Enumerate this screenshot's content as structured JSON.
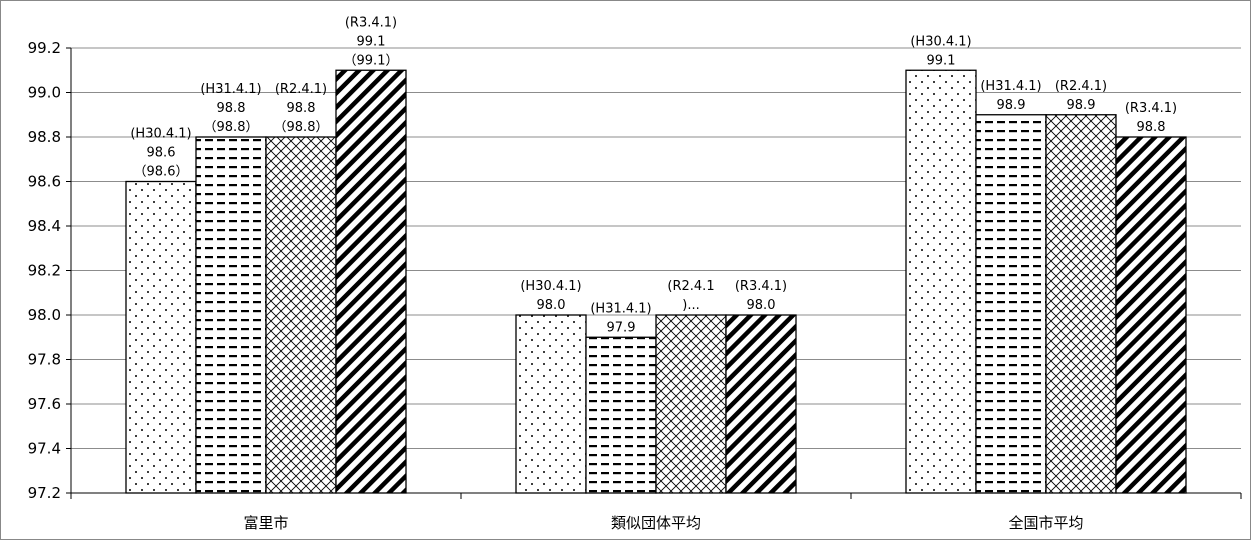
{
  "chart_data": {
    "type": "bar",
    "title": "",
    "xlabel": "",
    "ylabel": "",
    "ylim": [
      97.2,
      99.2
    ],
    "yticks": [
      "97.2",
      "97.4",
      "97.6",
      "97.8",
      "98.0",
      "98.2",
      "98.4",
      "98.6",
      "98.8",
      "99.0",
      "99.2"
    ],
    "grid": true,
    "legend": "none",
    "categories": [
      "富里市",
      "類似団体平均",
      "全国市平均"
    ],
    "series": [
      {
        "pattern": "dots",
        "values": [
          98.6,
          98.0,
          99.1
        ]
      },
      {
        "pattern": "dashes",
        "values": [
          98.8,
          97.9,
          98.9
        ]
      },
      {
        "pattern": "crosshatch",
        "values": [
          98.8,
          98.0,
          98.9
        ]
      },
      {
        "pattern": "diagonal-stripes",
        "values": [
          99.1,
          98.0,
          98.8
        ]
      }
    ],
    "data_labels": [
      [
        [
          "(H30.4.1)",
          "98.6",
          "（98.6）"
        ],
        [
          "(H31.4.1)",
          "98.8",
          "（98.8）"
        ],
        [
          "(R2.4.1)",
          "98.8",
          "（98.8）"
        ],
        [
          "(R3.4.1)",
          "99.1",
          "（99.1）"
        ]
      ],
      [
        [
          "(H30.4.1)",
          "98.0"
        ],
        [
          "(H31.4.1)",
          "97.9"
        ],
        [
          "(R2.4.1",
          ")..."
        ],
        [
          "(R3.4.1)",
          "98.0"
        ]
      ],
      [
        [
          "(H30.4.1)",
          "99.1"
        ],
        [
          "(H31.4.1)",
          "98.9"
        ],
        [
          "(R2.4.1)",
          "98.9"
        ],
        [
          "(R3.4.1)",
          "98.8"
        ]
      ]
    ]
  }
}
